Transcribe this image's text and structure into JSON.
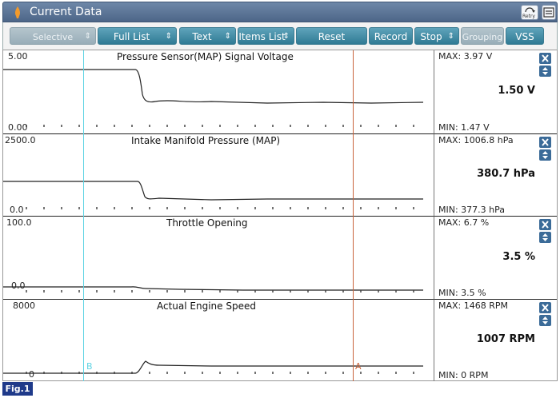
{
  "window": {
    "title": "Current Data",
    "retry_label": "Retry"
  },
  "toolbar": {
    "selective_display": "Selective Display",
    "full_list": "Full List",
    "text": "Text",
    "items_list": "Items List",
    "reset_minmax": "Reset Min.Max",
    "record": "Record",
    "stop": "Stop",
    "grouping": "Grouping",
    "vss": "VSS"
  },
  "cursors": {
    "b_label": "B",
    "a_label": "A",
    "b_color": "#5fd3e3",
    "a_color": "#c8643c"
  },
  "panels": [
    {
      "title": "Pressure Sensor(MAP) Signal Voltage",
      "y_max": "5.00",
      "y_min": "0.00",
      "max_text": "MAX:  3.97 V",
      "min_text": "MIN:  1.47 V",
      "current": "1.50 V"
    },
    {
      "title": "Intake Manifold Pressure (MAP)",
      "y_max": "2500.0",
      "y_min": "0.0",
      "max_text": "MAX: 1006.8 hPa",
      "min_text": "MIN: 377.3 hPa",
      "current": "380.7 hPa"
    },
    {
      "title": "Throttle Opening",
      "y_max": "100.0",
      "y_min": "0.0",
      "max_text": "MAX:   6.7 %",
      "min_text": "MIN:   3.5 %",
      "current": "3.5 %"
    },
    {
      "title": "Actual Engine Speed",
      "y_max": "8000",
      "y_min": "0",
      "max_text": "MAX:  1468 RPM",
      "min_text": "MIN:     0 RPM",
      "current": "1007 RPM"
    }
  ],
  "figure_label": "Fig.1",
  "colors": {
    "accent": "#2f7a94",
    "title_bar": "#5a7394",
    "fig_label": "#1f3a8a"
  }
}
